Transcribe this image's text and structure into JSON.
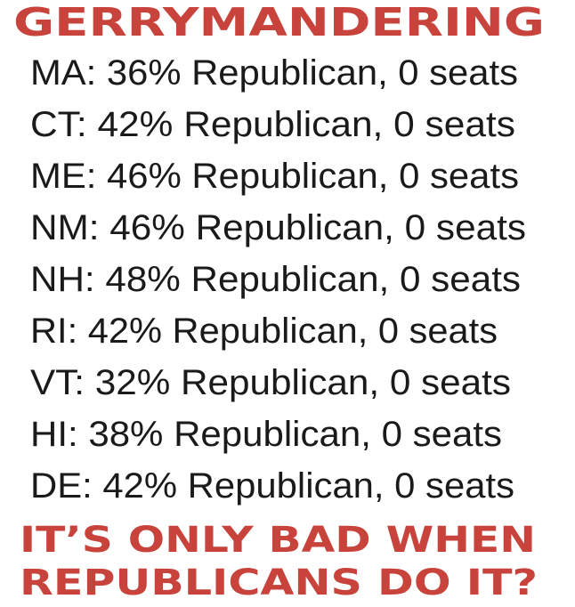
{
  "title": "GERRYMANDERING",
  "lines": [
    "MA: 36% Republican, 0 seats",
    "CT: 42% Republican, 0 seats",
    "ME: 46% Republican, 0 seats",
    "NM: 46% Republican, 0 seats",
    "NH: 48% Republican, 0 seats",
    "RI: 42% Republican, 0 seats",
    "VT: 32% Republican, 0 seats",
    "HI: 38% Republican, 0 seats",
    "DE: 42% Republican, 0 seats"
  ],
  "footer": [
    "IT’S ONLY BAD WHEN",
    "REPUBLICANS DO IT?"
  ]
}
